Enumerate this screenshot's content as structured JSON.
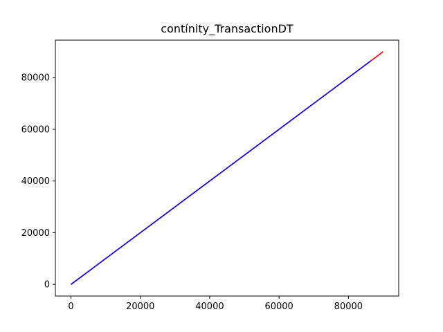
{
  "chart_data": {
    "type": "line",
    "title": "contínity_TransactionDT",
    "xlabel": "",
    "ylabel": "",
    "xlim": [
      -4500,
      94500
    ],
    "ylim": [
      -4500,
      94500
    ],
    "x_ticks": [
      0,
      20000,
      40000,
      60000,
      80000
    ],
    "y_ticks": [
      0,
      20000,
      40000,
      60000,
      80000
    ],
    "grid": false,
    "legend": "none",
    "series": [
      {
        "color": "#ff0000",
        "x": [
          0,
          90000
        ],
        "y": [
          0,
          90000
        ]
      },
      {
        "color": "#0000ff",
        "x": [
          0,
          86600
        ],
        "y": [
          0,
          86600
        ]
      }
    ]
  }
}
